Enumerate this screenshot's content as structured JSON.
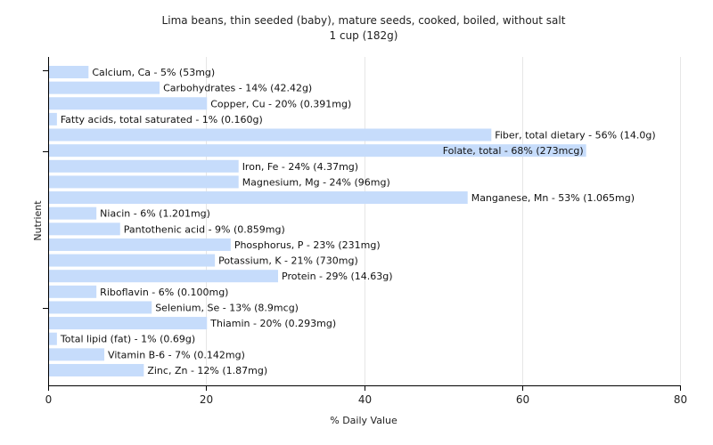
{
  "chart_data": {
    "type": "bar",
    "orientation": "horizontal",
    "title": "Lima beans, thin seeded (baby), mature seeds, cooked, boiled, without salt",
    "subtitle": "1 cup (182g)",
    "xlabel": "% Daily Value",
    "ylabel": "Nutrient",
    "xlim": [
      0,
      80
    ],
    "xticks": [
      0,
      20,
      40,
      60,
      80
    ],
    "grid": true,
    "bar_color": "#c6dcfb",
    "categories": [
      "Calcium, Ca",
      "Carbohydrates",
      "Copper, Cu",
      "Fatty acids, total saturated",
      "Fiber, total dietary",
      "Folate, total",
      "Iron, Fe",
      "Magnesium, Mg",
      "Manganese, Mn",
      "Niacin",
      "Pantothenic acid",
      "Phosphorus, P",
      "Potassium, K",
      "Protein",
      "Riboflavin",
      "Selenium, Se",
      "Thiamin",
      "Total lipid (fat)",
      "Vitamin B-6",
      "Zinc, Zn"
    ],
    "values": [
      5,
      14,
      20,
      1,
      56,
      68,
      24,
      24,
      53,
      6,
      9,
      23,
      21,
      29,
      6,
      13,
      20,
      1,
      7,
      12
    ],
    "labels": [
      "Calcium, Ca - 5% (53mg)",
      "Carbohydrates - 14% (42.42g)",
      "Copper, Cu - 20% (0.391mg)",
      "Fatty acids, total saturated - 1% (0.160g)",
      "Fiber, total dietary - 56% (14.0g)",
      "Folate, total - 68% (273mcg)",
      "Iron, Fe - 24% (4.37mg)",
      "Magnesium, Mg - 24% (96mg)",
      "Manganese, Mn - 53% (1.065mg)",
      "Niacin - 6% (1.201mg)",
      "Pantothenic acid - 9% (0.859mg)",
      "Phosphorus, P - 23% (231mg)",
      "Potassium, K - 21% (730mg)",
      "Protein - 29% (14.63g)",
      "Riboflavin - 6% (0.100mg)",
      "Selenium, Se - 13% (8.9mcg)",
      "Thiamin - 20% (0.293mg)",
      "Total lipid (fat) - 1% (0.69g)",
      "Vitamin B-6 - 7% (0.142mg)",
      "Zinc, Zn - 12% (1.87mg)"
    ]
  }
}
